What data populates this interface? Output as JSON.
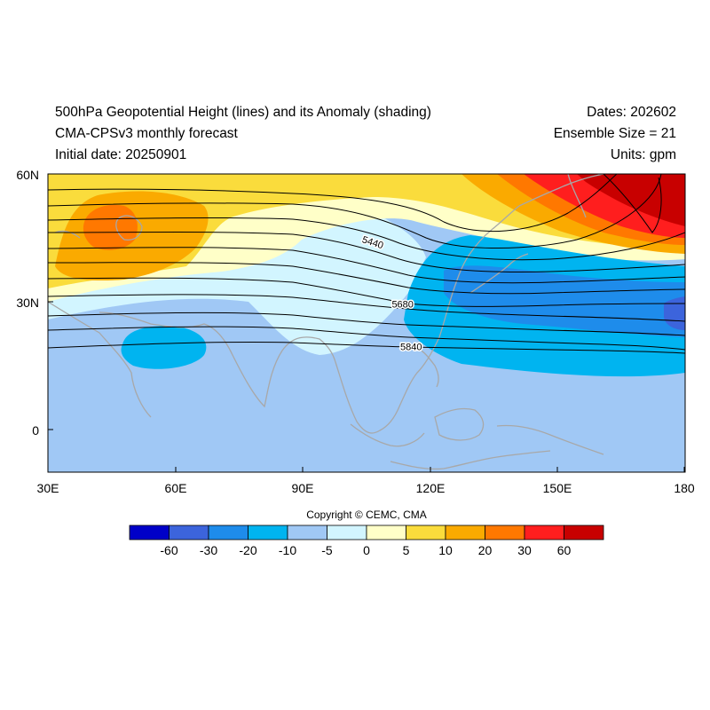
{
  "header": {
    "title": "500hPa Geopotential Height (lines) and its Anomaly (shading)",
    "model": "CMA-CPSv3 monthly forecast",
    "initial_date": "Initial date: 20250901",
    "dates": "Dates: 202602",
    "ensemble": "Ensemble Size = 21",
    "units": "Units: gpm"
  },
  "map": {
    "lon_range": [
      30,
      180
    ],
    "lat_range": [
      -10,
      60
    ],
    "lat_labels": [
      {
        "lat": 60,
        "text": "60N"
      },
      {
        "lat": 30,
        "text": "30N"
      },
      {
        "lat": 0,
        "text": "0"
      }
    ],
    "lon_labels": [
      {
        "lon": 30,
        "text": "30E"
      },
      {
        "lon": 60,
        "text": "60E"
      },
      {
        "lon": 90,
        "text": "90E"
      },
      {
        "lon": 120,
        "text": "120E"
      },
      {
        "lon": 150,
        "text": "150E"
      },
      {
        "lon": 180,
        "text": "180"
      }
    ],
    "contour_labels": [
      {
        "text": "5440",
        "lon": 106.5,
        "lat": 44
      },
      {
        "text": "5680",
        "lon": 113.5,
        "lat": 29.5
      },
      {
        "text": "5840",
        "lon": 115.5,
        "lat": 19.5
      }
    ],
    "coastline_color": "#a8a8a8",
    "contour_color": "#000000"
  },
  "copyright": "Copyright © CEMC, CMA",
  "colorbar": {
    "colors": [
      "#0000c8",
      "#3c64dc",
      "#1e8ceb",
      "#00b4f0",
      "#a0c8f5",
      "#d2f5ff",
      "#ffffc8",
      "#fadc3c",
      "#faaa00",
      "#ff7800",
      "#ff1e1e",
      "#c80000"
    ],
    "labels": [
      "-60",
      "-30",
      "-20",
      "-10",
      "-5",
      "0",
      "5",
      "10",
      "20",
      "30",
      "60"
    ]
  }
}
